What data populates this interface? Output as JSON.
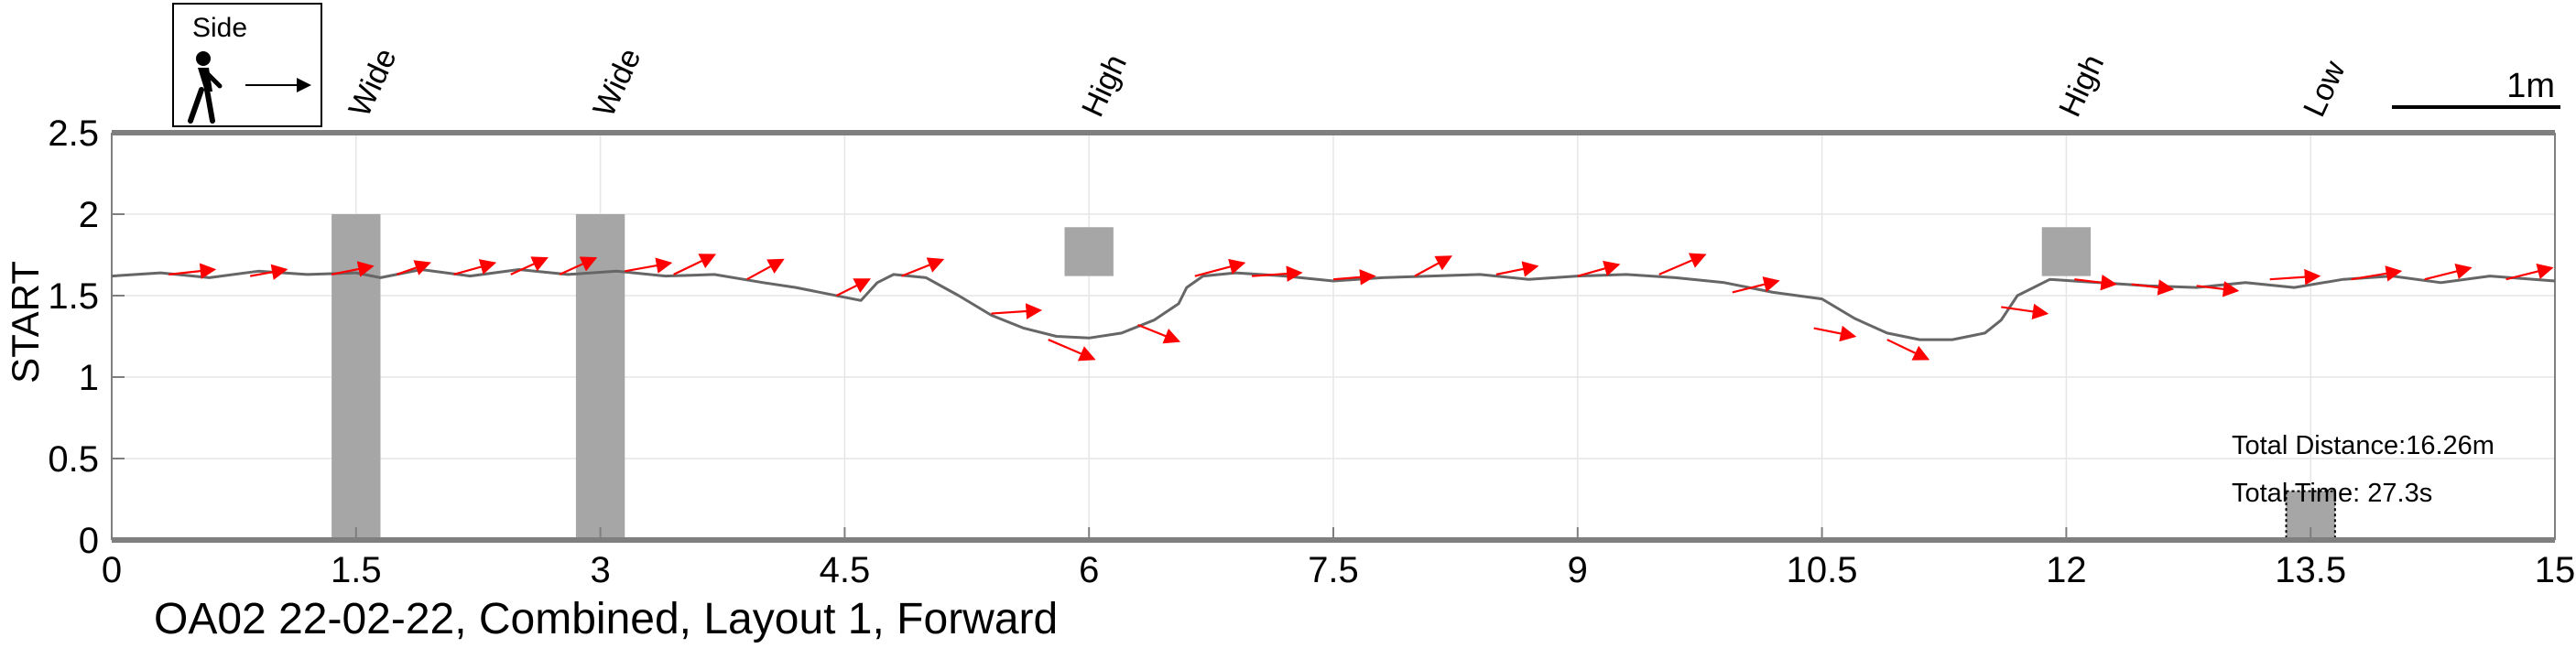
{
  "chart_data": {
    "type": "line",
    "title": "OA02 22-02-22, Combined, Layout 1, Forward",
    "xlabel": "",
    "ylabel": "START",
    "xlim": [
      0,
      15
    ],
    "ylim": [
      0,
      2.5
    ],
    "x_ticks": [
      "0",
      "1.5",
      "3",
      "4.5",
      "6",
      "7.5",
      "9",
      "10.5",
      "12",
      "13.5",
      "15"
    ],
    "y_ticks": [
      "0",
      "0.5",
      "1",
      "1.5",
      "2",
      "2.5"
    ],
    "grid": true,
    "legend": {
      "label": "Side",
      "placement": "top-left",
      "icon": "walking-person-icon"
    },
    "scale_bar": {
      "label": "1m",
      "length": 1
    },
    "stats": {
      "distance": "Total Distance:16.26m",
      "time": "Total Time: 27.3s"
    },
    "obstacle_labels": [
      {
        "text": "Wide",
        "x": 1.5
      },
      {
        "text": "Wide",
        "x": 3.0
      },
      {
        "text": "High",
        "x": 6.0
      },
      {
        "text": "High",
        "x": 12.0
      },
      {
        "text": "Low",
        "x": 13.5
      }
    ],
    "obstacles": [
      {
        "type": "Wide",
        "x0": 1.35,
        "x1": 1.65,
        "y0": 0,
        "y1": 2.0
      },
      {
        "type": "Wide",
        "x0": 2.85,
        "x1": 3.15,
        "y0": 0,
        "y1": 2.0
      },
      {
        "type": "High",
        "x0": 5.85,
        "x1": 6.15,
        "y0": 1.62,
        "y1": 1.92
      },
      {
        "type": "High",
        "x0": 11.85,
        "x1": 12.15,
        "y0": 1.62,
        "y1": 1.92
      },
      {
        "type": "Low",
        "x0": 13.35,
        "x1": 13.65,
        "y0": 0,
        "y1": 0.3
      }
    ],
    "series": [
      {
        "color": "#666666",
        "x": [
          0,
          0.3,
          0.6,
          0.9,
          1.2,
          1.5,
          1.65,
          1.9,
          2.2,
          2.5,
          2.8,
          3.1,
          3.4,
          3.7,
          4.0,
          4.2,
          4.5,
          4.6,
          4.7,
          4.8,
          5.0,
          5.2,
          5.4,
          5.6,
          5.8,
          6.0,
          6.2,
          6.4,
          6.55,
          6.6,
          6.7,
          6.9,
          7.2,
          7.5,
          7.8,
          8.1,
          8.4,
          8.7,
          9.0,
          9.3,
          9.6,
          9.9,
          10.2,
          10.5,
          10.7,
          10.9,
          11.1,
          11.3,
          11.5,
          11.6,
          11.7,
          11.9,
          12.2,
          12.5,
          12.8,
          13.1,
          13.4,
          13.7,
          14.0,
          14.3,
          14.6,
          15.0
        ],
        "y": [
          1.62,
          1.64,
          1.61,
          1.65,
          1.63,
          1.64,
          1.61,
          1.66,
          1.62,
          1.66,
          1.63,
          1.65,
          1.62,
          1.63,
          1.58,
          1.55,
          1.49,
          1.47,
          1.58,
          1.63,
          1.61,
          1.5,
          1.38,
          1.3,
          1.25,
          1.24,
          1.27,
          1.35,
          1.45,
          1.55,
          1.62,
          1.64,
          1.62,
          1.59,
          1.61,
          1.62,
          1.63,
          1.6,
          1.62,
          1.63,
          1.61,
          1.58,
          1.52,
          1.48,
          1.36,
          1.27,
          1.23,
          1.23,
          1.27,
          1.35,
          1.5,
          1.6,
          1.58,
          1.56,
          1.55,
          1.58,
          1.55,
          1.6,
          1.62,
          1.58,
          1.62,
          1.59
        ]
      }
    ],
    "velocity_arrows": [
      {
        "x": 0.35,
        "y": 1.63,
        "dx": 0.28,
        "dy": 0.03
      },
      {
        "x": 0.85,
        "y": 1.62,
        "dx": 0.22,
        "dy": 0.04
      },
      {
        "x": 1.35,
        "y": 1.63,
        "dx": 0.25,
        "dy": 0.05
      },
      {
        "x": 1.75,
        "y": 1.63,
        "dx": 0.2,
        "dy": 0.07
      },
      {
        "x": 2.1,
        "y": 1.63,
        "dx": 0.25,
        "dy": 0.07
      },
      {
        "x": 2.45,
        "y": 1.63,
        "dx": 0.22,
        "dy": 0.1
      },
      {
        "x": 2.75,
        "y": 1.63,
        "dx": 0.22,
        "dy": 0.1
      },
      {
        "x": 3.15,
        "y": 1.65,
        "dx": 0.28,
        "dy": 0.05
      },
      {
        "x": 3.45,
        "y": 1.63,
        "dx": 0.25,
        "dy": 0.12
      },
      {
        "x": 3.9,
        "y": 1.6,
        "dx": 0.22,
        "dy": 0.12
      },
      {
        "x": 4.45,
        "y": 1.5,
        "dx": 0.2,
        "dy": 0.1
      },
      {
        "x": 4.85,
        "y": 1.62,
        "dx": 0.25,
        "dy": 0.1
      },
      {
        "x": 5.4,
        "y": 1.39,
        "dx": 0.3,
        "dy": 0.02
      },
      {
        "x": 5.75,
        "y": 1.23,
        "dx": 0.28,
        "dy": -0.12
      },
      {
        "x": 6.3,
        "y": 1.32,
        "dx": 0.25,
        "dy": -0.1
      },
      {
        "x": 6.65,
        "y": 1.62,
        "dx": 0.3,
        "dy": 0.08
      },
      {
        "x": 7.0,
        "y": 1.62,
        "dx": 0.3,
        "dy": 0.02
      },
      {
        "x": 7.5,
        "y": 1.6,
        "dx": 0.25,
        "dy": 0.02
      },
      {
        "x": 8.0,
        "y": 1.62,
        "dx": 0.22,
        "dy": 0.12
      },
      {
        "x": 8.5,
        "y": 1.63,
        "dx": 0.25,
        "dy": 0.05
      },
      {
        "x": 9.0,
        "y": 1.62,
        "dx": 0.25,
        "dy": 0.07
      },
      {
        "x": 9.5,
        "y": 1.63,
        "dx": 0.28,
        "dy": 0.12
      },
      {
        "x": 9.95,
        "y": 1.52,
        "dx": 0.28,
        "dy": 0.07
      },
      {
        "x": 10.45,
        "y": 1.3,
        "dx": 0.25,
        "dy": -0.05
      },
      {
        "x": 10.9,
        "y": 1.23,
        "dx": 0.25,
        "dy": -0.12
      },
      {
        "x": 11.6,
        "y": 1.43,
        "dx": 0.28,
        "dy": -0.04
      },
      {
        "x": 12.05,
        "y": 1.6,
        "dx": 0.25,
        "dy": -0.03
      },
      {
        "x": 12.4,
        "y": 1.57,
        "dx": 0.25,
        "dy": -0.03
      },
      {
        "x": 12.8,
        "y": 1.56,
        "dx": 0.25,
        "dy": -0.03
      },
      {
        "x": 13.25,
        "y": 1.6,
        "dx": 0.3,
        "dy": 0.02
      },
      {
        "x": 13.75,
        "y": 1.6,
        "dx": 0.3,
        "dy": 0.05
      },
      {
        "x": 14.2,
        "y": 1.6,
        "dx": 0.28,
        "dy": 0.07
      },
      {
        "x": 14.7,
        "y": 1.6,
        "dx": 0.28,
        "dy": 0.07
      }
    ],
    "colors": {
      "trajectory": "#666666",
      "arrow": "#ff0000",
      "obstacle": "#a6a6a6",
      "axis": "#7f7f7f",
      "grid": "#e6e6e6"
    }
  }
}
